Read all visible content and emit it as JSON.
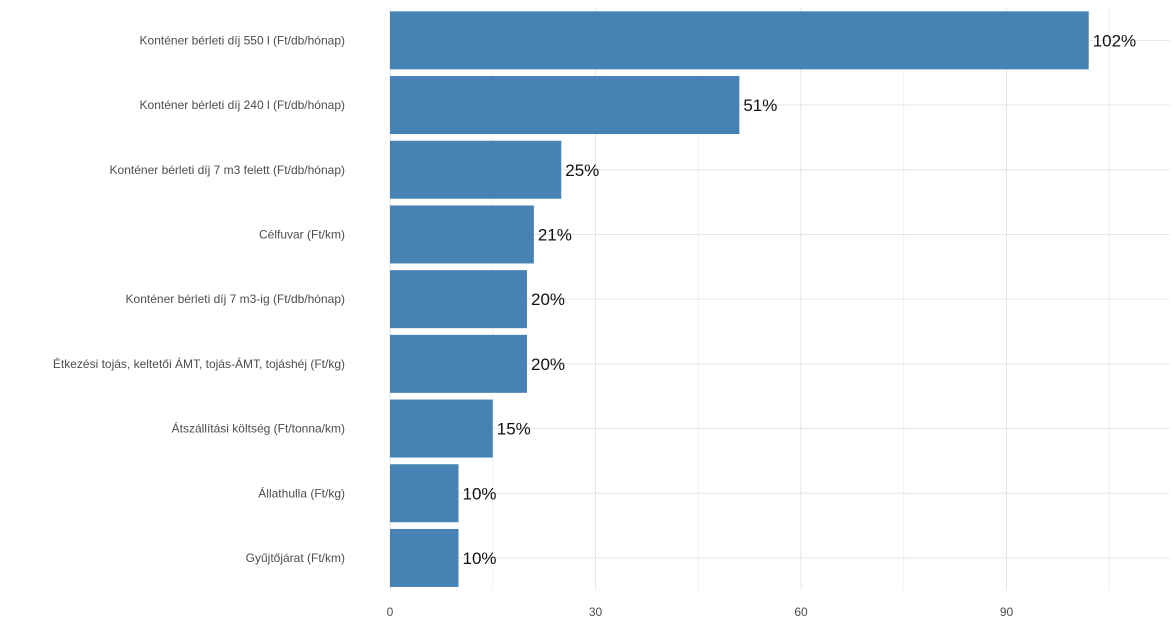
{
  "chart_data": {
    "type": "bar",
    "orientation": "horizontal",
    "title": "",
    "xlabel": "",
    "ylabel": "",
    "categories": [
      "Konténer bérleti díj 550 l  (Ft/db/hónap)",
      "Konténer bérleti díj 240 l (Ft/db/hónap)",
      "Konténer bérleti díj 7 m3 felett (Ft/db/hónap)",
      "Célfuvar (Ft/km)",
      "Konténer bérleti díj 7 m3-ig (Ft/db/hónap)",
      "Étkezési tojás, keltetői ÁMT, tojás-ÁMT, tojáshéj (Ft/kg)",
      "Átszállítási költség (Ft/tonna/km)",
      "Állathulla (Ft/kg)",
      "Gyűjtőjárat (Ft/km)"
    ],
    "values": [
      102,
      51,
      25,
      21,
      20,
      20,
      15,
      10,
      10
    ],
    "value_labels": [
      "102%",
      "51%",
      "25%",
      "21%",
      "20%",
      "20%",
      "15%",
      "10%",
      "10%"
    ],
    "x_ticks": [
      0,
      30,
      60,
      90
    ],
    "x_tick_labels": [
      "0",
      "30",
      "60",
      "90"
    ],
    "xlim": [
      0,
      114
    ],
    "grid": true,
    "legend": "none",
    "colors": {
      "bar": "#4682B4",
      "grid_major": "#e6e6e6",
      "grid_minor": "#f2f2f2",
      "background": "#ffffff"
    }
  }
}
